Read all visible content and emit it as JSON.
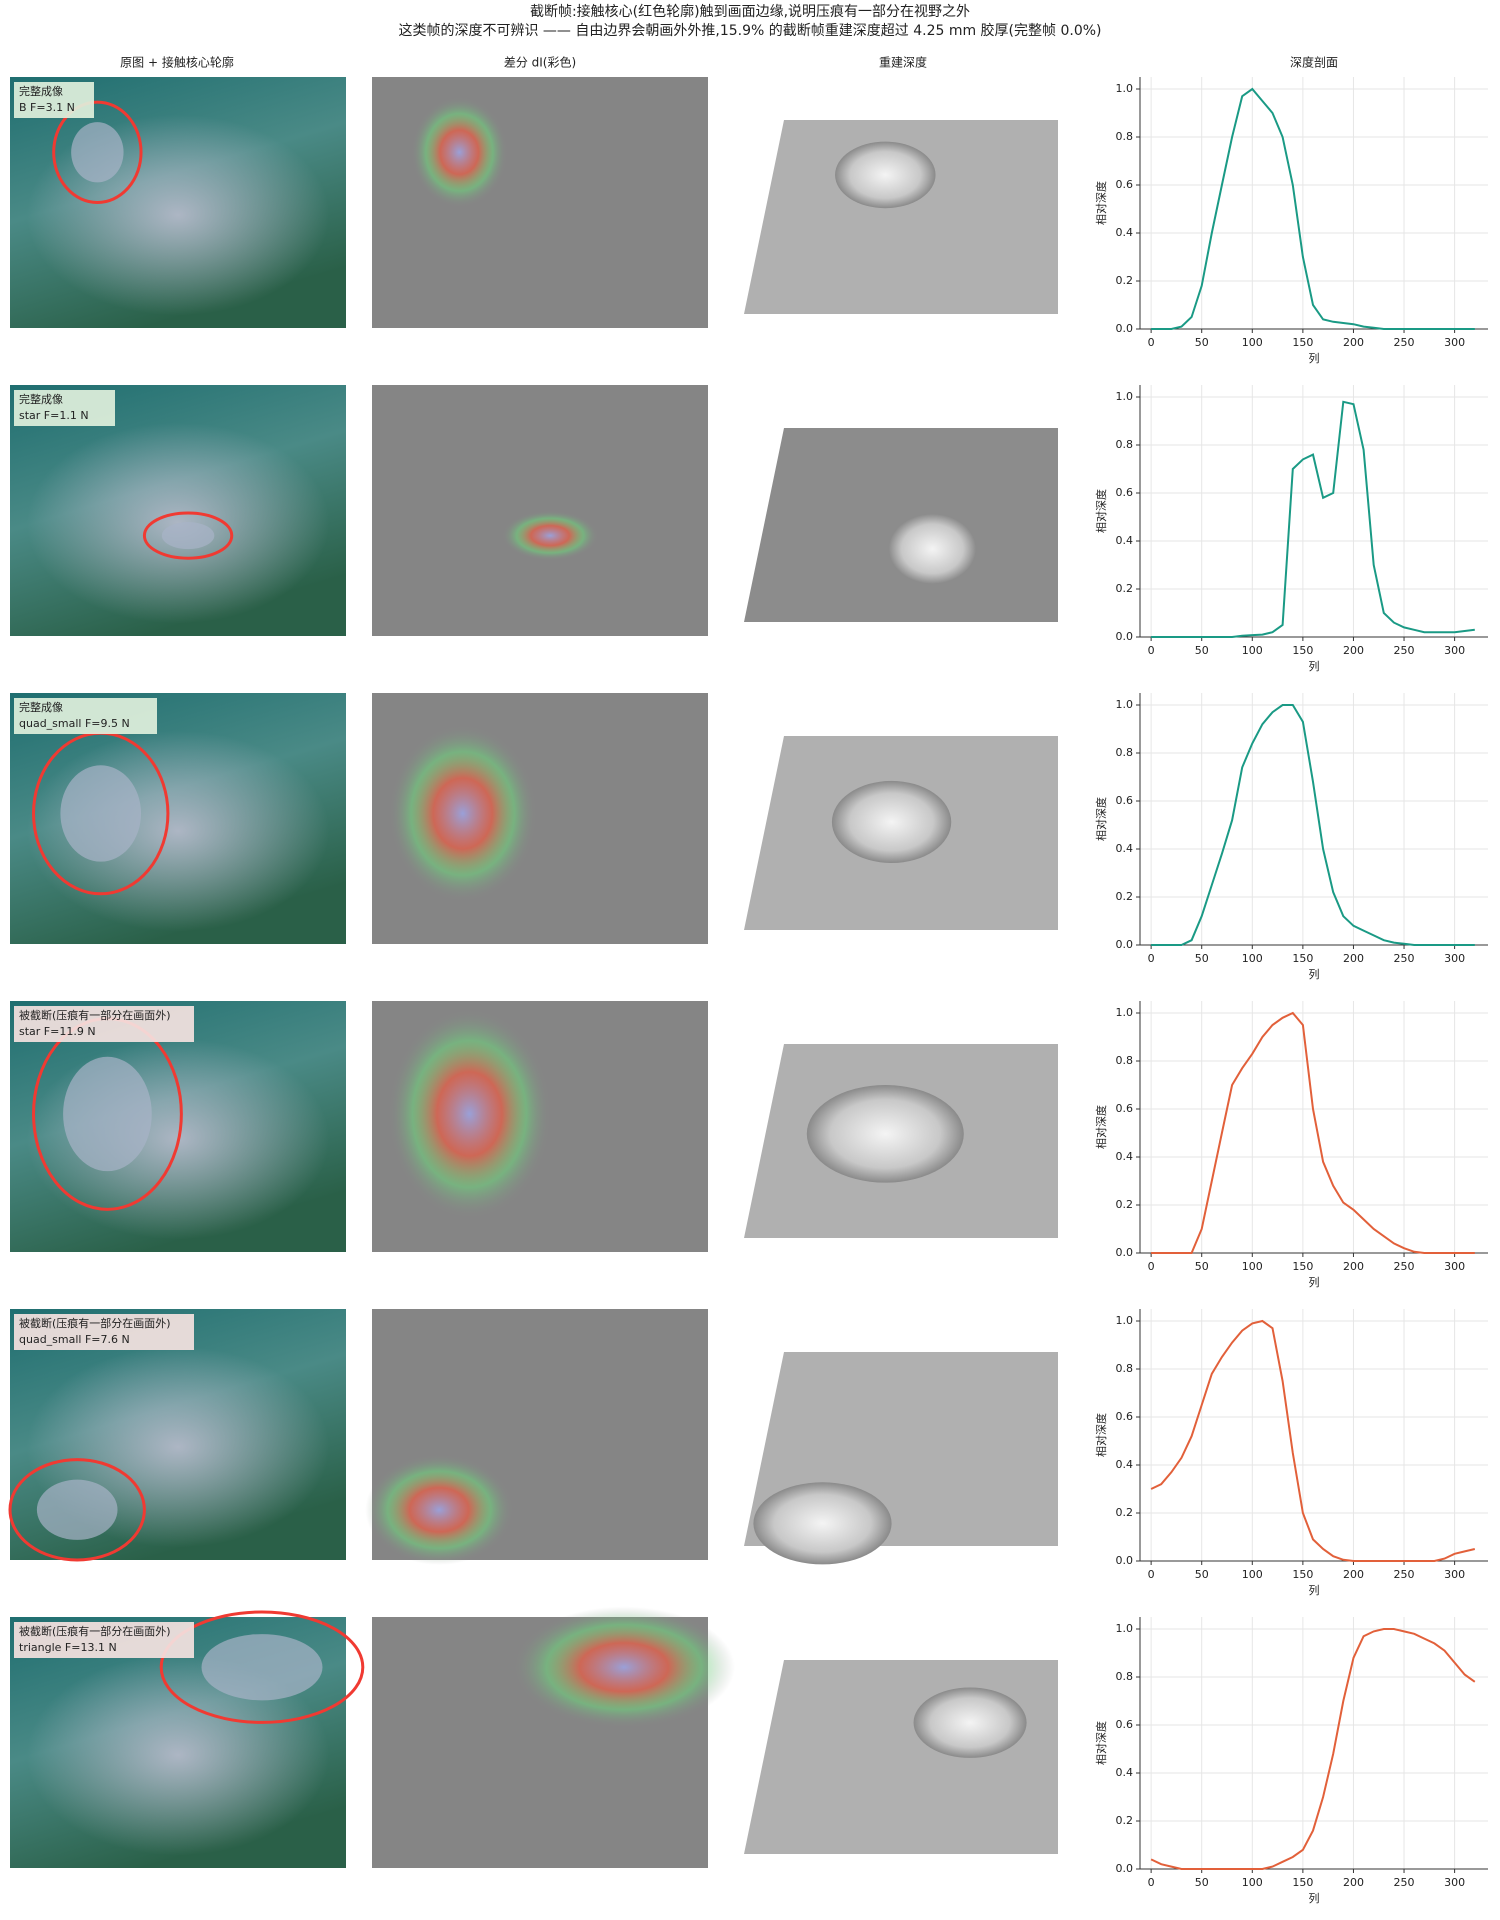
{
  "title": "截断帧:接触核心(红色轮廓)触到画面边缘,说明压痕有一部分在视野之外",
  "subtitle": "这类帧的深度不可辨识 —— 自由边界会朝画外外推,15.9% 的截断帧重建深度超过 4.25 mm 胶厚(完整帧 0.0%)",
  "column_titles": [
    "原图 + 接触核心轮廓",
    "差分 dI(彩色)",
    "重建深度",
    "深度剖面"
  ],
  "panels": [
    {
      "status": "完整成像",
      "label": "B  F=3.1 N"
    },
    {
      "status": "完整成像",
      "label": "star  F=1.1 N"
    },
    {
      "status": "完整成像",
      "label": "quad_small  F=9.5 N"
    },
    {
      "status": "被截断(压痕有一部分在画面外)",
      "label": "star  F=11.9 N"
    },
    {
      "status": "被截断(压痕有一部分在画面外)",
      "label": "quad_small  F=7.6 N"
    },
    {
      "status": "被截断(压痕有一部分在画面外)",
      "label": "triangle  F=13.1 N"
    }
  ],
  "chart_data": [
    {
      "type": "line",
      "xlabel": "列",
      "ylabel": "相对深度",
      "xlim": [
        -11,
        333
      ],
      "ylim": [
        0,
        1.05
      ],
      "xticks": [
        0,
        50,
        100,
        150,
        200,
        250,
        300
      ],
      "yticks": [
        {
          "value": 0,
          "label": "0.0"
        },
        0.2,
        0.4,
        0.6,
        0.8,
        {
          "value": 1,
          "label": "1.0"
        }
      ],
      "grid": true,
      "x": [
        0,
        10,
        20,
        30,
        40,
        50,
        60,
        70,
        80,
        90,
        100,
        110,
        120,
        130,
        140,
        150,
        160,
        170,
        180,
        190,
        200,
        210,
        220,
        230,
        240,
        250,
        260,
        270,
        280,
        290,
        300,
        310,
        320
      ],
      "series": [
        {
          "name": "完整成像",
          "color": "#1a9a85",
          "values": [
            0,
            0,
            0,
            0.01,
            0.05,
            0.18,
            0.4,
            0.6,
            0.8,
            0.97,
            1.0,
            0.95,
            0.9,
            0.8,
            0.6,
            0.3,
            0.1,
            0.04,
            0.03,
            0.025,
            0.02,
            0.01,
            0.005,
            0,
            0,
            0,
            0,
            0,
            0,
            0,
            0,
            0,
            0
          ]
        }
      ]
    },
    {
      "type": "line",
      "xlabel": "列",
      "ylabel": "相对深度",
      "xlim": [
        -11,
        333
      ],
      "ylim": [
        0,
        1.05
      ],
      "xticks": [
        0,
        50,
        100,
        150,
        200,
        250,
        300
      ],
      "yticks": [
        {
          "value": 0,
          "label": "0.0"
        },
        0.2,
        0.4,
        0.6,
        0.8,
        {
          "value": 1,
          "label": "1.0"
        }
      ],
      "grid": true,
      "x": [
        0,
        10,
        20,
        30,
        40,
        50,
        60,
        70,
        80,
        90,
        100,
        110,
        120,
        130,
        140,
        150,
        160,
        170,
        180,
        190,
        200,
        210,
        220,
        230,
        240,
        250,
        260,
        270,
        280,
        290,
        300,
        310,
        320
      ],
      "series": [
        {
          "name": "完整成像",
          "color": "#1a9a85",
          "values": [
            0,
            0,
            0,
            0,
            0,
            0,
            0,
            0,
            0,
            0.005,
            0.008,
            0.01,
            0.02,
            0.05,
            0.7,
            0.74,
            0.76,
            0.58,
            0.6,
            0.98,
            0.97,
            0.78,
            0.3,
            0.1,
            0.06,
            0.04,
            0.03,
            0.02,
            0.02,
            0.02,
            0.02,
            0.025,
            0.03
          ]
        }
      ]
    },
    {
      "type": "line",
      "xlabel": "列",
      "ylabel": "相对深度",
      "xlim": [
        -11,
        333
      ],
      "ylim": [
        0,
        1.05
      ],
      "xticks": [
        0,
        50,
        100,
        150,
        200,
        250,
        300
      ],
      "yticks": [
        {
          "value": 0,
          "label": "0.0"
        },
        0.2,
        0.4,
        0.6,
        0.8,
        {
          "value": 1,
          "label": "1.0"
        }
      ],
      "grid": true,
      "x": [
        0,
        10,
        20,
        30,
        40,
        50,
        60,
        70,
        80,
        90,
        100,
        110,
        120,
        130,
        140,
        150,
        160,
        170,
        180,
        190,
        200,
        210,
        220,
        230,
        240,
        250,
        260,
        270,
        280,
        290,
        300,
        310,
        320
      ],
      "series": [
        {
          "name": "完整成像",
          "color": "#1a9a85",
          "values": [
            0,
            0,
            0,
            0,
            0.02,
            0.12,
            0.25,
            0.38,
            0.52,
            0.74,
            0.84,
            0.92,
            0.97,
            1.0,
            1.0,
            0.93,
            0.68,
            0.4,
            0.22,
            0.12,
            0.08,
            0.06,
            0.04,
            0.02,
            0.01,
            0.005,
            0,
            0,
            0,
            0,
            0,
            0,
            0
          ]
        }
      ]
    },
    {
      "type": "line",
      "xlabel": "列",
      "ylabel": "相对深度",
      "xlim": [
        -11,
        333
      ],
      "ylim": [
        0,
        1.05
      ],
      "xticks": [
        0,
        50,
        100,
        150,
        200,
        250,
        300
      ],
      "yticks": [
        {
          "value": 0,
          "label": "0.0"
        },
        0.2,
        0.4,
        0.6,
        0.8,
        {
          "value": 1,
          "label": "1.0"
        }
      ],
      "grid": true,
      "x": [
        0,
        10,
        20,
        30,
        40,
        50,
        60,
        70,
        80,
        90,
        100,
        110,
        120,
        130,
        140,
        150,
        160,
        170,
        180,
        190,
        200,
        210,
        220,
        230,
        240,
        250,
        260,
        270,
        280,
        290,
        300,
        310,
        320
      ],
      "series": [
        {
          "name": "被截断",
          "color": "#e2603a",
          "values": [
            0,
            0,
            0,
            0,
            0,
            0.1,
            0.3,
            0.5,
            0.7,
            0.77,
            0.83,
            0.9,
            0.95,
            0.98,
            1.0,
            0.95,
            0.6,
            0.38,
            0.28,
            0.21,
            0.18,
            0.14,
            0.1,
            0.07,
            0.04,
            0.02,
            0.005,
            0,
            0,
            0,
            0,
            0,
            0
          ]
        }
      ]
    },
    {
      "type": "line",
      "xlabel": "列",
      "ylabel": "相对深度",
      "xlim": [
        -11,
        333
      ],
      "ylim": [
        0,
        1.05
      ],
      "xticks": [
        0,
        50,
        100,
        150,
        200,
        250,
        300
      ],
      "yticks": [
        {
          "value": 0,
          "label": "0.0"
        },
        0.2,
        0.4,
        0.6,
        0.8,
        {
          "value": 1,
          "label": "1.0"
        }
      ],
      "grid": true,
      "x": [
        0,
        10,
        20,
        30,
        40,
        50,
        60,
        70,
        80,
        90,
        100,
        110,
        120,
        130,
        140,
        150,
        160,
        170,
        180,
        190,
        200,
        210,
        220,
        230,
        240,
        250,
        260,
        270,
        280,
        290,
        300,
        310,
        320
      ],
      "series": [
        {
          "name": "被截断",
          "color": "#e2603a",
          "values": [
            0.3,
            0.32,
            0.37,
            0.43,
            0.52,
            0.65,
            0.78,
            0.85,
            0.91,
            0.96,
            0.99,
            1.0,
            0.97,
            0.75,
            0.45,
            0.2,
            0.09,
            0.05,
            0.02,
            0.005,
            0,
            0,
            0,
            0,
            0,
            0,
            0,
            0,
            0,
            0.01,
            0.03,
            0.04,
            0.05
          ]
        }
      ]
    },
    {
      "type": "line",
      "xlabel": "列",
      "ylabel": "相对深度",
      "xlim": [
        -11,
        333
      ],
      "ylim": [
        0,
        1.05
      ],
      "xticks": [
        0,
        50,
        100,
        150,
        200,
        250,
        300
      ],
      "yticks": [
        {
          "value": 0,
          "label": "0.0"
        },
        0.2,
        0.4,
        0.6,
        0.8,
        {
          "value": 1,
          "label": "1.0"
        }
      ],
      "grid": true,
      "x": [
        0,
        10,
        20,
        30,
        40,
        50,
        60,
        70,
        80,
        90,
        100,
        110,
        120,
        130,
        140,
        150,
        160,
        170,
        180,
        190,
        200,
        210,
        220,
        230,
        240,
        250,
        260,
        270,
        280,
        290,
        300,
        310,
        320
      ],
      "series": [
        {
          "name": "被截断",
          "color": "#e2603a",
          "values": [
            0.04,
            0.02,
            0.01,
            0,
            0,
            0,
            0,
            0,
            0,
            0,
            0,
            0,
            0.01,
            0.03,
            0.05,
            0.08,
            0.16,
            0.3,
            0.48,
            0.7,
            0.88,
            0.97,
            0.99,
            1.0,
            1.0,
            0.99,
            0.98,
            0.96,
            0.94,
            0.91,
            0.86,
            0.81,
            0.78
          ]
        }
      ]
    }
  ]
}
